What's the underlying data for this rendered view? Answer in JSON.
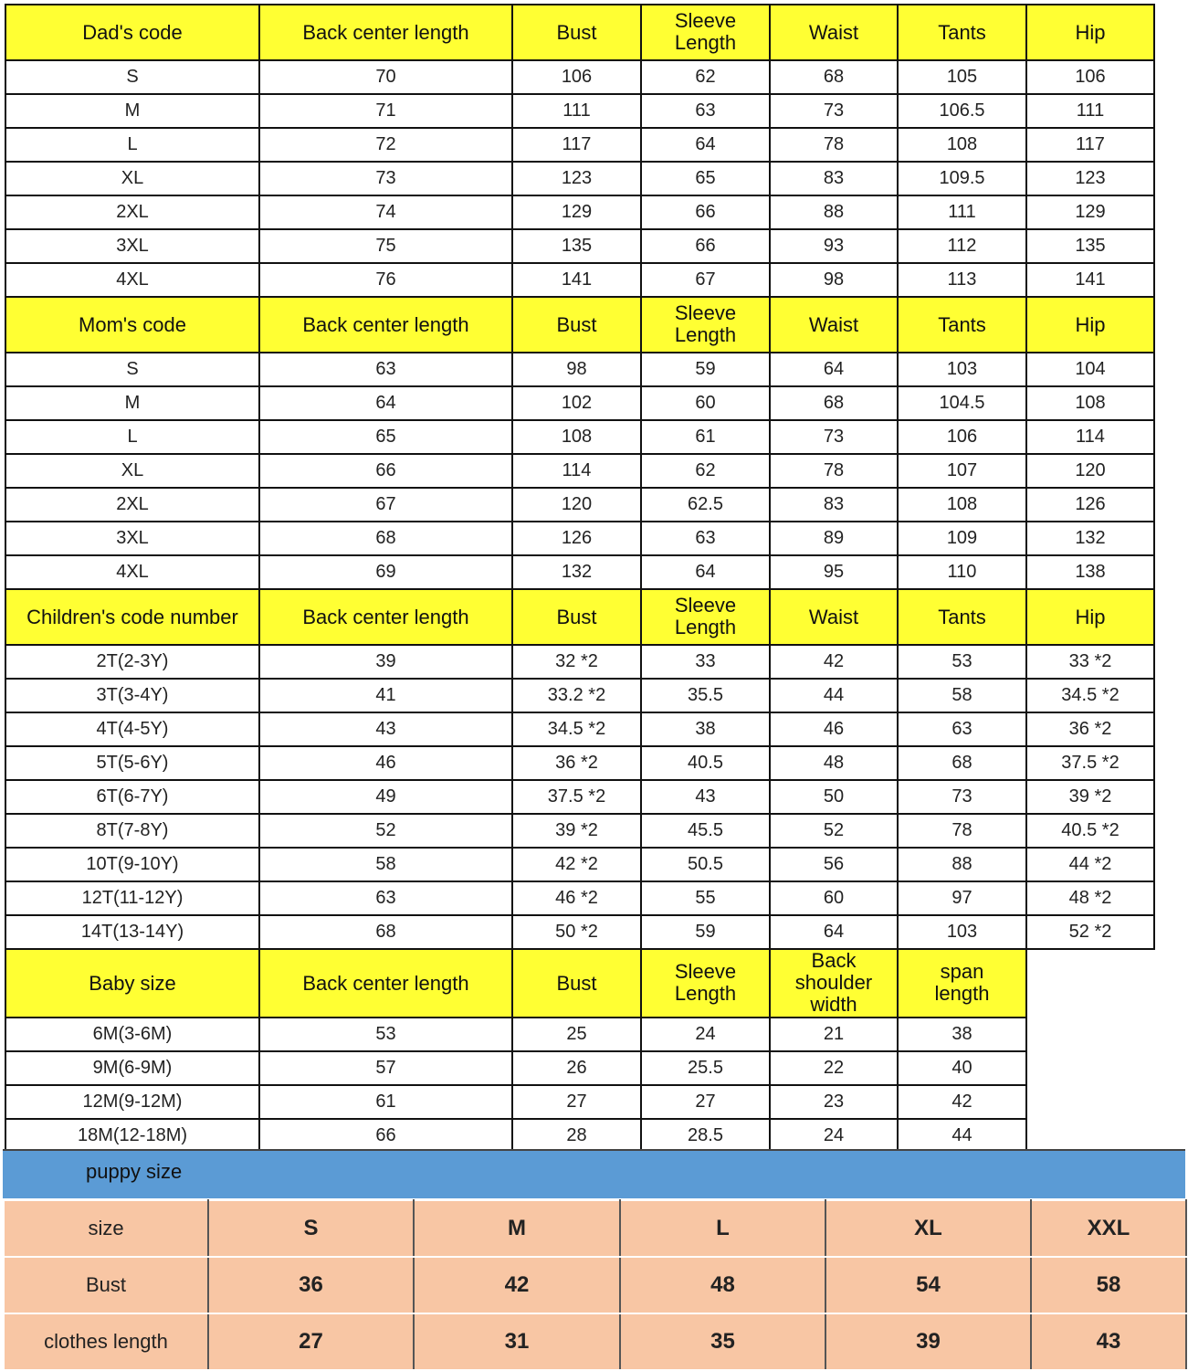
{
  "sections": [
    {
      "header": [
        "Dad's code",
        "Back center length",
        "Bust",
        "Sleeve Length",
        "Waist",
        "Tants",
        "Hip"
      ],
      "rows": [
        [
          "S",
          "70",
          "106",
          "62",
          "68",
          "105",
          "106"
        ],
        [
          "M",
          "71",
          "111",
          "63",
          "73",
          "106.5",
          "111"
        ],
        [
          "L",
          "72",
          "117",
          "64",
          "78",
          "108",
          "117"
        ],
        [
          "XL",
          "73",
          "123",
          "65",
          "83",
          "109.5",
          "123"
        ],
        [
          "2XL",
          "74",
          "129",
          "66",
          "88",
          "111",
          "129"
        ],
        [
          "3XL",
          "75",
          "135",
          "66",
          "93",
          "112",
          "135"
        ],
        [
          "4XL",
          "76",
          "141",
          "67",
          "98",
          "113",
          "141"
        ]
      ]
    },
    {
      "header": [
        "Mom's code",
        "Back center length",
        "Bust",
        "Sleeve Length",
        "Waist",
        "Tants",
        "Hip"
      ],
      "rows": [
        [
          "S",
          "63",
          "98",
          "59",
          "64",
          "103",
          "104"
        ],
        [
          "M",
          "64",
          "102",
          "60",
          "68",
          "104.5",
          "108"
        ],
        [
          "L",
          "65",
          "108",
          "61",
          "73",
          "106",
          "114"
        ],
        [
          "XL",
          "66",
          "114",
          "62",
          "78",
          "107",
          "120"
        ],
        [
          "2XL",
          "67",
          "120",
          "62.5",
          "83",
          "108",
          "126"
        ],
        [
          "3XL",
          "68",
          "126",
          "63",
          "89",
          "109",
          "132"
        ],
        [
          "4XL",
          "69",
          "132",
          "64",
          "95",
          "110",
          "138"
        ]
      ]
    },
    {
      "header": [
        "Children's code number",
        "Back center length",
        "Bust",
        "Sleeve Length",
        "Waist",
        "Tants",
        "Hip"
      ],
      "rows": [
        [
          "2T(2-3Y)",
          "39",
          "32 *2",
          "33",
          "42",
          "53",
          "33 *2"
        ],
        [
          "3T(3-4Y)",
          "41",
          "33.2 *2",
          "35.5",
          "44",
          "58",
          "34.5 *2"
        ],
        [
          "4T(4-5Y)",
          "43",
          "34.5 *2",
          "38",
          "46",
          "63",
          "36 *2"
        ],
        [
          "5T(5-6Y)",
          "46",
          "36 *2",
          "40.5",
          "48",
          "68",
          "37.5 *2"
        ],
        [
          "6T(6-7Y)",
          "49",
          "37.5 *2",
          "43",
          "50",
          "73",
          "39 *2"
        ],
        [
          "8T(7-8Y)",
          "52",
          "39 *2",
          "45.5",
          "52",
          "78",
          "40.5 *2"
        ],
        [
          "10T(9-10Y)",
          "58",
          "42 *2",
          "50.5",
          "56",
          "88",
          "44 *2"
        ],
        [
          "12T(11-12Y)",
          "63",
          "46 *2",
          "55",
          "60",
          "97",
          "48 *2"
        ],
        [
          "14T(13-14Y)",
          "68",
          "50 *2",
          "59",
          "64",
          "103",
          "52 *2"
        ]
      ]
    },
    {
      "header": [
        "Baby size",
        "Back center length",
        "Bust",
        "Sleeve Length",
        "Back shoulder width",
        "span length"
      ],
      "rows": [
        [
          "6M(3-6M)",
          "53",
          "25",
          "24",
          "21",
          "38"
        ],
        [
          "9M(6-9M)",
          "57",
          "26",
          "25.5",
          "22",
          "40"
        ],
        [
          "12M(9-12M)",
          "61",
          "27",
          "27",
          "23",
          "42"
        ],
        [
          "18M(12-18M)",
          "66",
          "28",
          "28.5",
          "24",
          "44"
        ]
      ]
    }
  ],
  "puppy": {
    "title": "puppy size",
    "rows": [
      [
        "size",
        "S",
        "M",
        "L",
        "XL",
        "XXL"
      ],
      [
        "Bust",
        "36",
        "42",
        "48",
        "54",
        "58"
      ],
      [
        "clothes length",
        "27",
        "31",
        "35",
        "39",
        "43"
      ]
    ]
  }
}
